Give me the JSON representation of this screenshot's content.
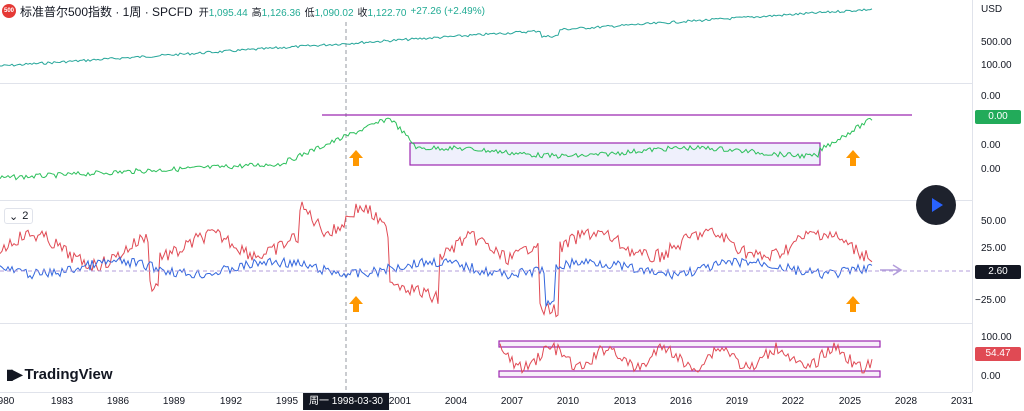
{
  "header": {
    "badge": "500",
    "symbol": "标准普尔500指数 · 1周 · SPCFD",
    "open_label": "开",
    "open": "1,095.44",
    "high_label": "高",
    "high": "1,126.36",
    "low_label": "低",
    "low": "1,090.02",
    "close_label": "收",
    "close": "1,122.70",
    "change": "+27.26 (+2.49%)"
  },
  "indicator_label": "2",
  "price_scale": {
    "currency": "USD",
    "pane1": [
      "500.00",
      "100.00"
    ],
    "pane2": [
      "0.00",
      "0.00",
      "0.00",
      "0.00"
    ],
    "pane2_tag": "0.00",
    "pane3": [
      "50.00",
      "25.00",
      "−25.00"
    ],
    "pane3_tag": "2.60",
    "pane4": [
      "100.00",
      "0.00"
    ],
    "pane4_tag": "54.47"
  },
  "time_axis": {
    "labels": [
      "980",
      "1983",
      "1986",
      "1989",
      "1992",
      "1995",
      "2001",
      "2004",
      "2007",
      "2010",
      "2013",
      "2016",
      "2019",
      "2022",
      "2025",
      "2028",
      "2031"
    ],
    "cursor": "周一 1998-03-30"
  },
  "logo": "TradingView",
  "colors": {
    "green": "#22ab94",
    "line_green": "#2bbf5a",
    "red": "#e04a54",
    "blue": "#3366dd",
    "purple": "#9c27b0",
    "orange": "#ff9800"
  }
}
